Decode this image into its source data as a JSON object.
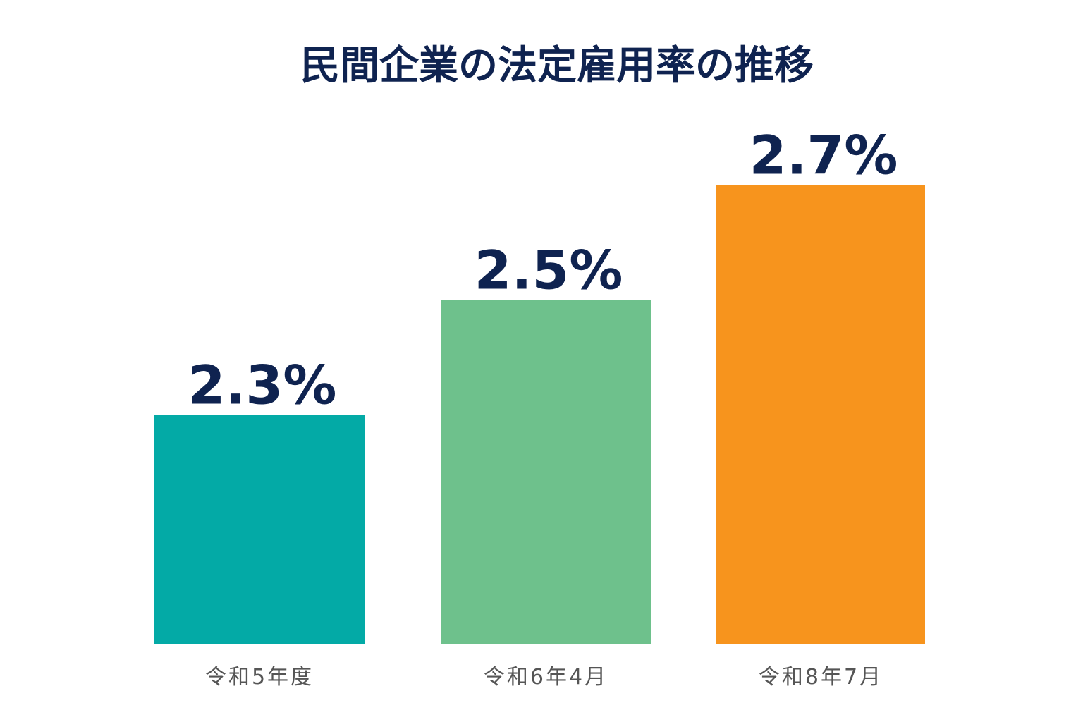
{
  "chart_data": {
    "type": "bar",
    "title": "民間企業の法定雇用率の推移",
    "categories": [
      "令和5年度",
      "令和6年4月",
      "令和8年7月"
    ],
    "values": [
      2.3,
      2.5,
      2.7
    ],
    "value_labels": [
      "2.3%",
      "2.5%",
      "2.7%"
    ],
    "colors": [
      "#03aaa6",
      "#6ec18c",
      "#f7941d"
    ],
    "ylim": [
      1.9,
      2.75
    ]
  }
}
